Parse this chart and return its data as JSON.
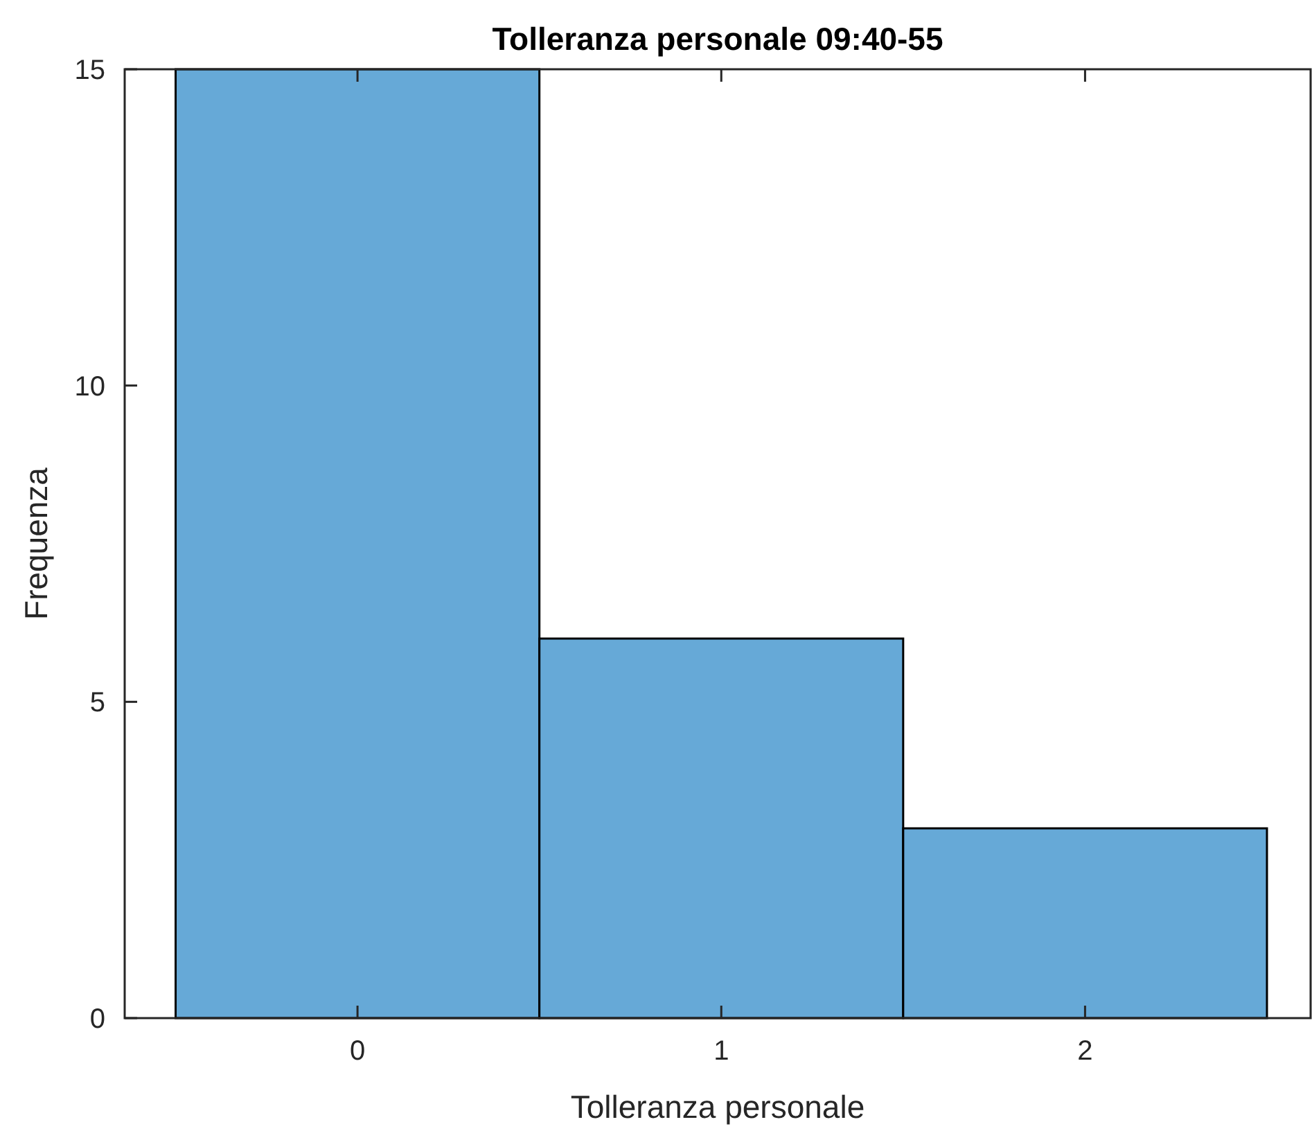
{
  "chart_data": {
    "type": "histogram",
    "title": "Tolleranza personale 09:40-55",
    "xlabel": "Tolleranza personale",
    "ylabel": "Frequenza",
    "bins": [
      -0.5,
      0.5,
      1.5,
      2.5
    ],
    "values": [
      15,
      6,
      3
    ],
    "color": "#66a9d7",
    "xlim": [
      -0.64,
      2.62
    ],
    "ylim": [
      0,
      15
    ],
    "xticks": [
      0,
      1,
      2
    ],
    "yticks": [
      0,
      5,
      10,
      15
    ],
    "grid": false
  }
}
